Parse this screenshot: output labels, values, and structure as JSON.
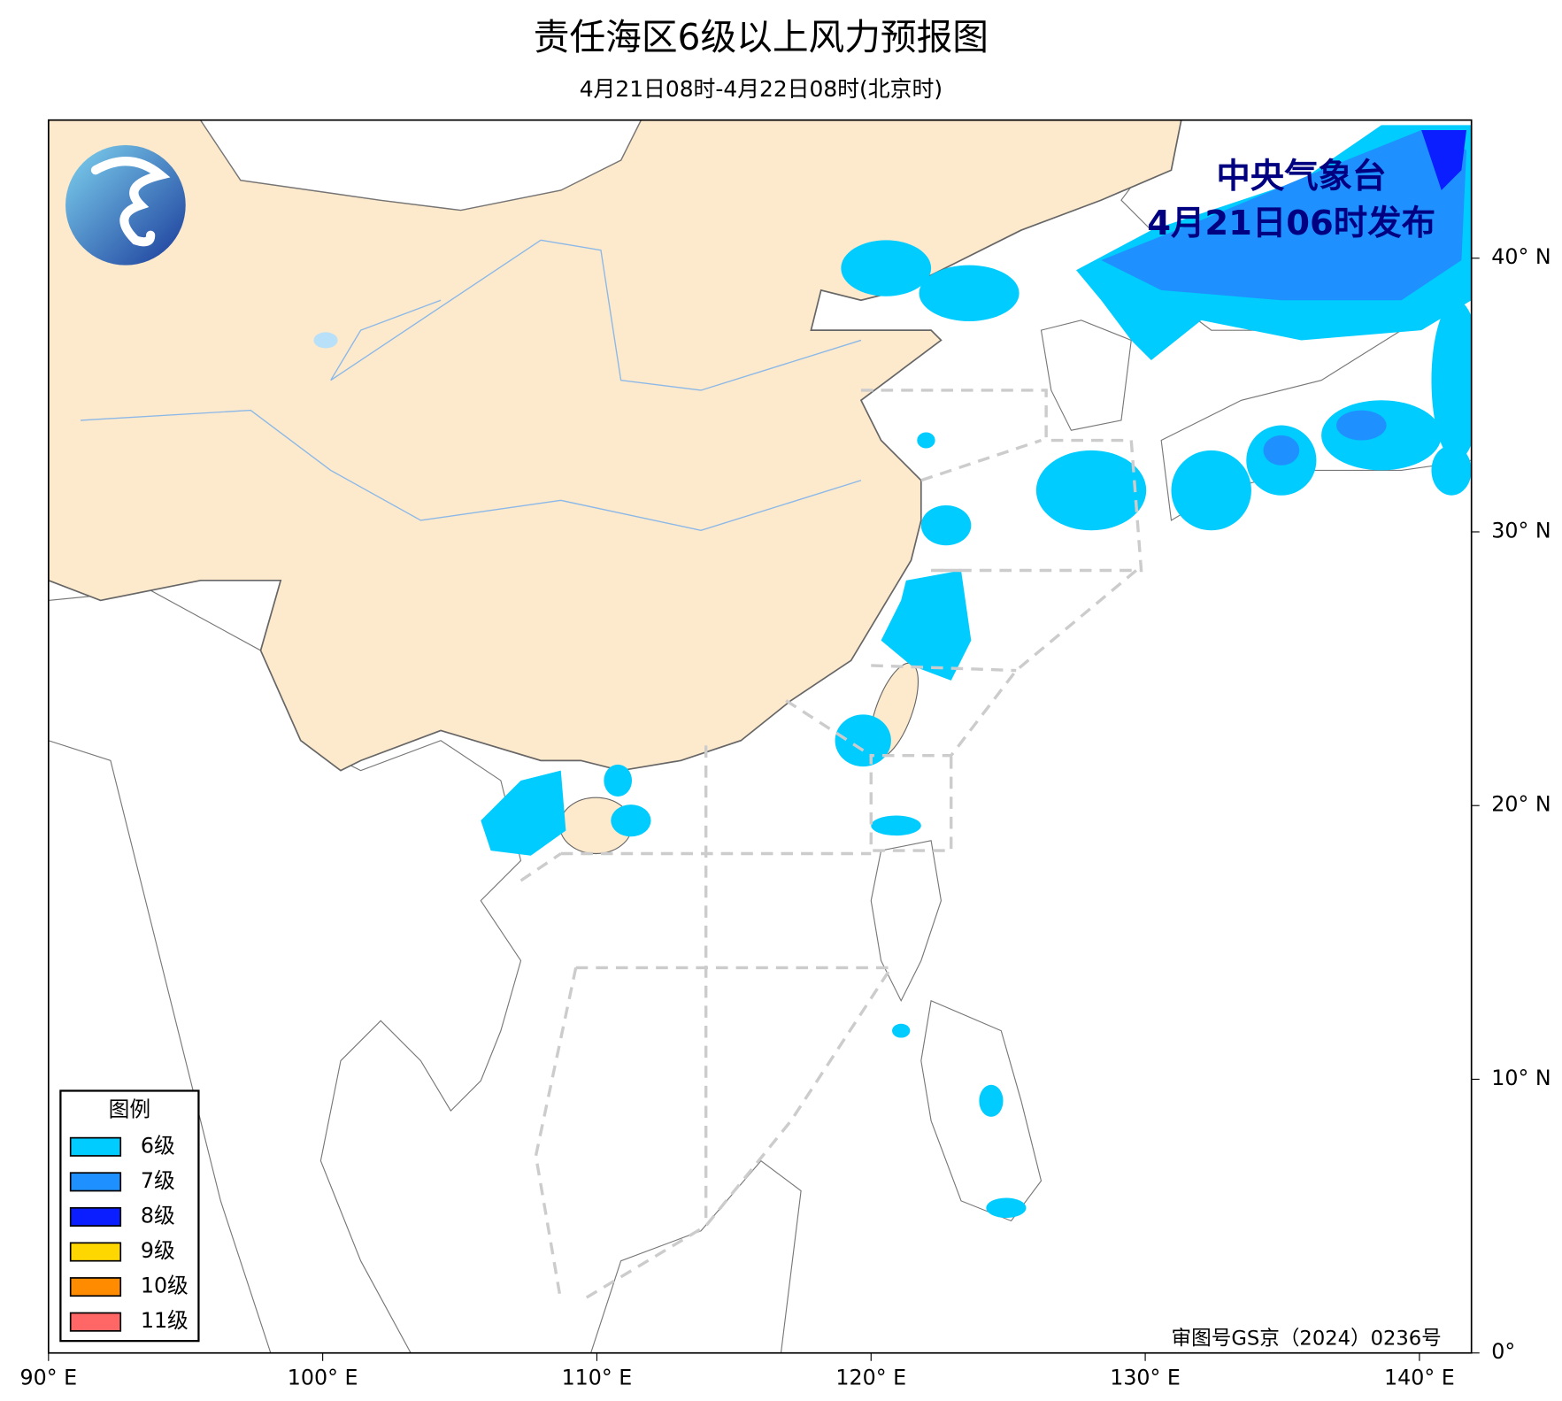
{
  "header": {
    "title": "责任海区6级以上风力预报图",
    "subtitle": "4月21日08时-4月22日08时(北京时)"
  },
  "publisher": {
    "name": "中央气象台",
    "issued": "4月21日06时发布"
  },
  "legend": {
    "title": "图例",
    "items": [
      {
        "label": "6级",
        "color": "#00ccff"
      },
      {
        "label": "7级",
        "color": "#1e90ff"
      },
      {
        "label": "8级",
        "color": "#0a1eff"
      },
      {
        "label": "9级",
        "color": "#ffd700"
      },
      {
        "label": "10级",
        "color": "#ff8c00"
      },
      {
        "label": "11级",
        "color": "#ff6666"
      }
    ]
  },
  "axes": {
    "lon_ticks": [
      {
        "value": 90,
        "label": "90° E"
      },
      {
        "value": 100,
        "label": "100° E"
      },
      {
        "value": 110,
        "label": "110° E"
      },
      {
        "value": 120,
        "label": "120° E"
      },
      {
        "value": 130,
        "label": "130° E"
      },
      {
        "value": 140,
        "label": "140° E"
      }
    ],
    "lat_ticks": [
      {
        "value": 40,
        "label": "40° N"
      },
      {
        "value": 30,
        "label": "30° N"
      },
      {
        "value": 20,
        "label": "20° N"
      },
      {
        "value": 10,
        "label": "10° N"
      },
      {
        "value": 0,
        "label": "0°"
      }
    ]
  },
  "footer": {
    "approval": "审图号GS京（2024）0236号"
  }
}
